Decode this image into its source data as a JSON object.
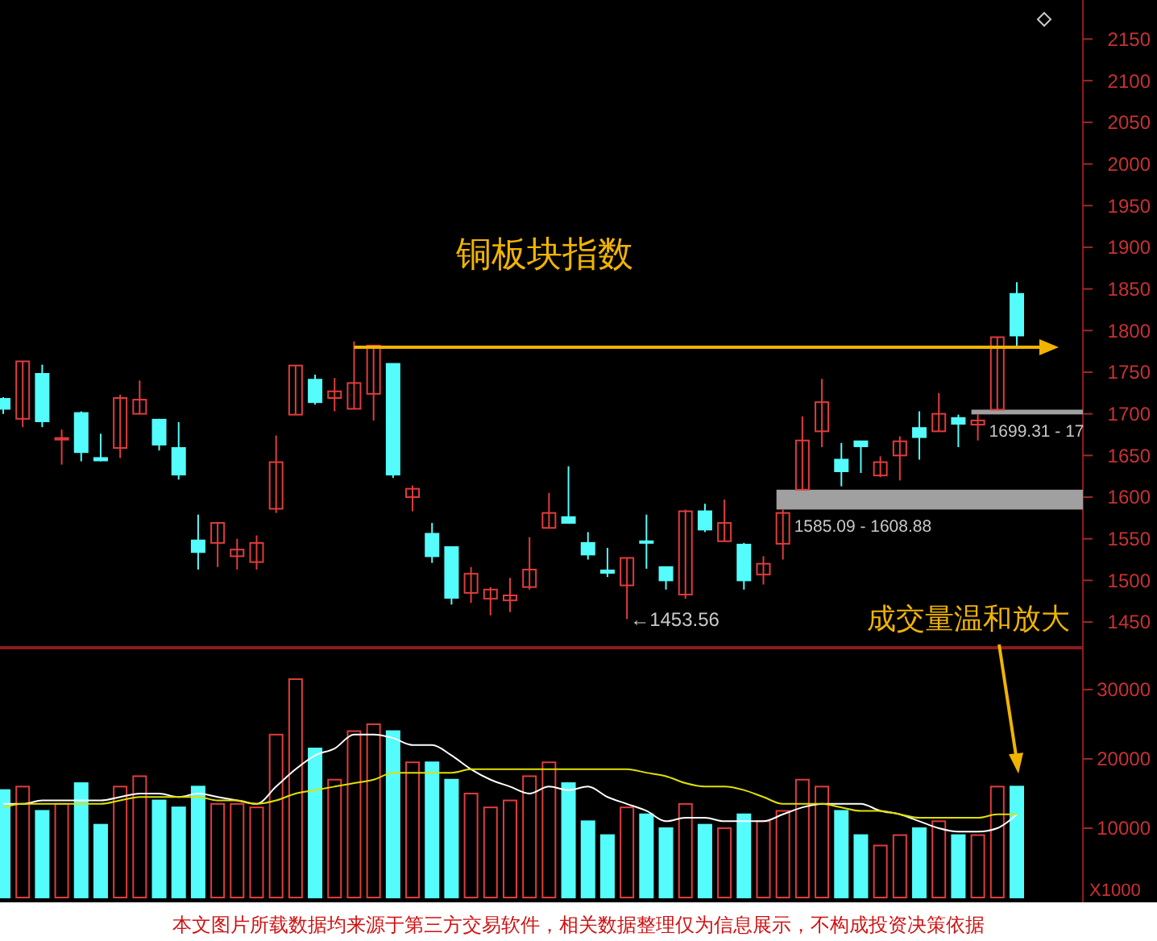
{
  "chart_data": [
    {
      "type": "candlestick",
      "title": "铜板块指数",
      "categories": [
        null,
        null,
        null,
        null,
        null,
        null,
        null,
        null,
        null,
        null,
        null,
        null,
        null,
        null,
        null,
        null,
        null,
        null,
        null,
        null,
        null,
        null,
        null,
        null,
        null,
        null,
        null,
        null,
        null,
        null,
        null,
        null,
        null,
        null,
        null,
        null,
        null,
        null,
        null,
        null,
        null,
        null,
        null,
        null,
        null,
        null,
        null,
        null,
        null,
        null,
        null,
        null,
        null
      ],
      "ohlc": [
        [
          1718,
          1720,
          1700,
          1706
        ],
        [
          1694,
          1763,
          1684,
          1763
        ],
        [
          1748,
          1759,
          1684,
          1691
        ],
        [
          1669,
          1681,
          1639,
          1671
        ],
        [
          1701,
          1703,
          1643,
          1654
        ],
        [
          1647,
          1676,
          1643,
          1644
        ],
        [
          1659,
          1723,
          1647,
          1719
        ],
        [
          1700,
          1740,
          1700,
          1717
        ],
        [
          1693,
          1694,
          1656,
          1663
        ],
        [
          1659,
          1690,
          1621,
          1627
        ],
        [
          1548,
          1579,
          1513,
          1534
        ],
        [
          1545,
          1569,
          1516,
          1569
        ],
        [
          1529,
          1550,
          1513,
          1537
        ],
        [
          1522,
          1554,
          1513,
          1545
        ],
        [
          1586,
          1674,
          1581,
          1642
        ],
        [
          1699,
          1758,
          1699,
          1758
        ],
        [
          1741,
          1747,
          1711,
          1714
        ],
        [
          1719,
          1743,
          1703,
          1727
        ],
        [
          1706,
          1787,
          1706,
          1737
        ],
        [
          1724,
          1782,
          1692,
          1782
        ],
        [
          1760,
          1760,
          1623,
          1627
        ],
        [
          1600,
          1614,
          1583,
          1610
        ],
        [
          1556,
          1569,
          1521,
          1529
        ],
        [
          1540,
          1540,
          1471,
          1479
        ],
        [
          1485,
          1516,
          1473,
          1508
        ],
        [
          1478,
          1492,
          1458,
          1489
        ],
        [
          1476,
          1503,
          1462,
          1482
        ],
        [
          1492,
          1552,
          1489,
          1513
        ],
        [
          1563,
          1605,
          1563,
          1581
        ],
        [
          1576,
          1637,
          1568,
          1569
        ],
        [
          1545,
          1558,
          1525,
          1531
        ],
        [
          1512,
          1539,
          1504,
          1509
        ],
        [
          1494,
          1527,
          1453.56,
          1527
        ],
        [
          1547,
          1579,
          1514,
          1545
        ],
        [
          1516,
          1516,
          1489,
          1500
        ],
        [
          1483,
          1585,
          1478,
          1583
        ],
        [
          1583,
          1592,
          1558,
          1561
        ],
        [
          1547,
          1597,
          1547,
          1569
        ],
        [
          1543,
          1545,
          1489,
          1500
        ],
        [
          1507,
          1529,
          1495,
          1520
        ],
        [
          1544,
          1585.09,
          1525,
          1581
        ],
        [
          1608.88,
          1697,
          1608.88,
          1668
        ],
        [
          1679,
          1742,
          1660,
          1714
        ],
        [
          1645,
          1665,
          1613,
          1631
        ],
        [
          1667,
          1667,
          1629,
          1661
        ],
        [
          1626,
          1649,
          1624,
          1642
        ],
        [
          1650,
          1673,
          1620,
          1667
        ],
        [
          1683,
          1703,
          1645,
          1672
        ],
        [
          1679,
          1725,
          1679,
          1700
        ],
        [
          1695,
          1699,
          1660,
          1688
        ],
        [
          1687,
          1699.31,
          1668,
          1692
        ],
        [
          1705,
          1792,
          1705,
          1792
        ],
        [
          1844,
          1858,
          1781,
          1794
        ]
      ],
      "colors": [
        "#54fcfc",
        "#e03c3c",
        "#54fcfc",
        "#e03c3c",
        "#54fcfc",
        "#54fcfc",
        "#e03c3c",
        "#e03c3c",
        "#54fcfc",
        "#54fcfc",
        "#54fcfc",
        "#e03c3c",
        "#e03c3c",
        "#e03c3c",
        "#e03c3c",
        "#e03c3c",
        "#54fcfc",
        "#e03c3c",
        "#e03c3c",
        "#e03c3c",
        "#54fcfc",
        "#e03c3c",
        "#54fcfc",
        "#54fcfc",
        "#e03c3c",
        "#e03c3c",
        "#e03c3c",
        "#e03c3c",
        "#e03c3c",
        "#54fcfc",
        "#54fcfc",
        "#54fcfc",
        "#e03c3c",
        "#54fcfc",
        "#54fcfc",
        "#e03c3c",
        "#54fcfc",
        "#e03c3c",
        "#54fcfc",
        "#e03c3c",
        "#e03c3c",
        "#e03c3c",
        "#e03c3c",
        "#54fcfc",
        "#54fcfc",
        "#e03c3c",
        "#e03c3c",
        "#54fcfc",
        "#e03c3c",
        "#54fcfc",
        "#e03c3c",
        "#e03c3c",
        "#54fcfc"
      ],
      "ylim": [
        1423,
        2193
      ],
      "yticks": [
        1450,
        1500,
        1550,
        1600,
        1650,
        1700,
        1750,
        1800,
        1850,
        1900,
        1950,
        2000,
        2050,
        2100,
        2150
      ],
      "bands": [
        {
          "axis": "y",
          "from": 1585.09,
          "to": 1608.88,
          "label": "1585.09 - 1608.88",
          "color": "#a0a0a0"
        },
        {
          "axis": "y",
          "from": 1699.31,
          "to": 1705,
          "label": "1699.31 - 17",
          "color": "#a0a0a0"
        }
      ],
      "ref_lines": [
        {
          "axis": "y",
          "value": 1780,
          "color": "#f0b400"
        }
      ],
      "annotations": [
        "←1453.56"
      ],
      "grid": false
    },
    {
      "type": "bar",
      "ylabel": "X1000",
      "categories": [
        null,
        null,
        null,
        null,
        null,
        null,
        null,
        null,
        null,
        null,
        null,
        null,
        null,
        null,
        null,
        null,
        null,
        null,
        null,
        null,
        null,
        null,
        null,
        null,
        null,
        null,
        null,
        null,
        null,
        null,
        null,
        null,
        null,
        null,
        null,
        null,
        null,
        null,
        null,
        null,
        null,
        null,
        null,
        null,
        null,
        null,
        null,
        null,
        null,
        null,
        null,
        null,
        null
      ],
      "series": [
        {
          "type": "bar",
          "values": [
            15500,
            16000,
            12500,
            13500,
            16500,
            10500,
            16000,
            17500,
            14000,
            13000,
            16000,
            13500,
            13500,
            13000,
            23500,
            31500,
            21500,
            17000,
            24000,
            25000,
            24000,
            19500,
            19500,
            17000,
            15000,
            13000,
            14000,
            17500,
            19500,
            16500,
            11000,
            9000,
            13000,
            12000,
            10000,
            13500,
            10500,
            10000,
            12000,
            11000,
            12500,
            17000,
            16000,
            12500,
            9000,
            7500,
            9000,
            10000,
            11000,
            9000,
            9000,
            16000,
            16000
          ],
          "colors": [
            "#54fcfc",
            "#e03c3c",
            "#54fcfc",
            "#e03c3c",
            "#54fcfc",
            "#54fcfc",
            "#e03c3c",
            "#e03c3c",
            "#54fcfc",
            "#54fcfc",
            "#54fcfc",
            "#e03c3c",
            "#e03c3c",
            "#e03c3c",
            "#e03c3c",
            "#e03c3c",
            "#54fcfc",
            "#e03c3c",
            "#e03c3c",
            "#e03c3c",
            "#54fcfc",
            "#e03c3c",
            "#54fcfc",
            "#54fcfc",
            "#e03c3c",
            "#e03c3c",
            "#e03c3c",
            "#e03c3c",
            "#e03c3c",
            "#54fcfc",
            "#54fcfc",
            "#54fcfc",
            "#e03c3c",
            "#54fcfc",
            "#54fcfc",
            "#e03c3c",
            "#54fcfc",
            "#e03c3c",
            "#54fcfc",
            "#e03c3c",
            "#e03c3c",
            "#e03c3c",
            "#e03c3c",
            "#54fcfc",
            "#54fcfc",
            "#e03c3c",
            "#e03c3c",
            "#54fcfc",
            "#e03c3c",
            "#54fcfc",
            "#e03c3c",
            "#e03c3c",
            "#54fcfc"
          ]
        },
        {
          "type": "line",
          "color": "#ffffff",
          "values": [
            13500,
            13500,
            14000,
            14000,
            14000,
            14000,
            14500,
            15000,
            15000,
            14500,
            15000,
            14500,
            14000,
            13500,
            16000,
            18500,
            20500,
            21500,
            23500,
            23500,
            23000,
            22000,
            22000,
            20500,
            18500,
            17000,
            16000,
            15000,
            16000,
            15500,
            16000,
            14500,
            13500,
            12500,
            11000,
            11500,
            11500,
            11000,
            11000,
            11000,
            12000,
            13000,
            13500,
            13500,
            13500,
            12500,
            12000,
            11000,
            10000,
            9500,
            9500,
            10000,
            12000
          ]
        },
        {
          "type": "line",
          "color": "#e0e000",
          "values": [
            13000,
            13500,
            13500,
            13500,
            13500,
            13500,
            14000,
            14500,
            14500,
            14500,
            14500,
            14000,
            14000,
            13500,
            14000,
            15000,
            15500,
            16000,
            16500,
            17000,
            18000,
            18000,
            18000,
            18000,
            18500,
            18500,
            18500,
            18500,
            18500,
            18500,
            18500,
            18500,
            18500,
            18000,
            17500,
            16500,
            16000,
            16000,
            15500,
            14500,
            13500,
            13500,
            13500,
            13000,
            12500,
            12500,
            12000,
            11500,
            11500,
            11500,
            11500,
            12000,
            12000
          ]
        }
      ],
      "ylim": [
        0,
        35800
      ],
      "yticks": [
        10000,
        20000,
        30000
      ],
      "annotations": [
        "成交量温和放大",
        "本文图片所载数据均来源于第三方交易软件，相关数据整理仅为信息展示，不构成投资决策依据"
      ],
      "grid": false
    }
  ]
}
